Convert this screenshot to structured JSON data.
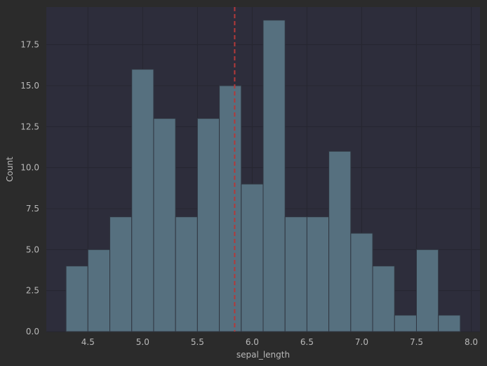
{
  "chart_data": {
    "type": "bar",
    "subtype": "histogram",
    "title": "",
    "xlabel": "sepal_length",
    "ylabel": "Count",
    "xlim": [
      4.12,
      8.08
    ],
    "ylim": [
      0,
      19.8
    ],
    "xticks": [
      4.5,
      5.0,
      5.5,
      6.0,
      6.5,
      7.0,
      7.5,
      8.0
    ],
    "xtick_labels": [
      "4.5",
      "5.0",
      "5.5",
      "6.0",
      "6.5",
      "7.0",
      "7.5",
      "8.0"
    ],
    "yticks": [
      0,
      2.5,
      5,
      7.5,
      10,
      12.5,
      15,
      17.5
    ],
    "ytick_labels": [
      "0.0",
      "2.5",
      "5.0",
      "7.5",
      "10.0",
      "12.5",
      "15.0",
      "17.5"
    ],
    "grid": true,
    "bins": [
      {
        "start": 4.3,
        "end": 4.5,
        "count": 4
      },
      {
        "start": 4.5,
        "end": 4.7,
        "count": 5
      },
      {
        "start": 4.7,
        "end": 4.9,
        "count": 7
      },
      {
        "start": 4.9,
        "end": 5.1,
        "count": 16
      },
      {
        "start": 5.1,
        "end": 5.3,
        "count": 13
      },
      {
        "start": 5.3,
        "end": 5.5,
        "count": 7
      },
      {
        "start": 5.5,
        "end": 5.7,
        "count": 13
      },
      {
        "start": 5.7,
        "end": 5.9,
        "count": 15
      },
      {
        "start": 5.9,
        "end": 6.1,
        "count": 9
      },
      {
        "start": 6.1,
        "end": 6.3,
        "count": 19
      },
      {
        "start": 6.3,
        "end": 6.5,
        "count": 7
      },
      {
        "start": 6.5,
        "end": 6.7,
        "count": 7
      },
      {
        "start": 6.7,
        "end": 6.9,
        "count": 11
      },
      {
        "start": 6.9,
        "end": 7.1,
        "count": 6
      },
      {
        "start": 7.1,
        "end": 7.3,
        "count": 4
      },
      {
        "start": 7.3,
        "end": 7.5,
        "count": 1
      },
      {
        "start": 7.5,
        "end": 7.7,
        "count": 5
      },
      {
        "start": 7.7,
        "end": 7.9,
        "count": 1
      }
    ],
    "reference_line": {
      "orientation": "vertical",
      "x": 5.84,
      "style": "dashed"
    },
    "colors": {
      "figure_background": "#2b2b2b",
      "plot_background": "#2d2d3b",
      "grid": "#262630",
      "bar_fill": "#56707f",
      "bar_edge": "#303641",
      "reference_line": "#b33a3a",
      "text": "#b8b8b8"
    }
  }
}
